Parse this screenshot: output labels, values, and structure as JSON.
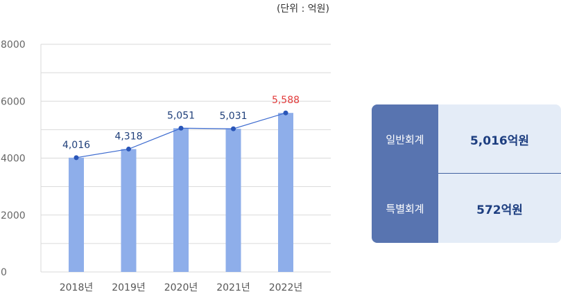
{
  "unit_label": "(단위 : 억원)",
  "colors": {
    "bar": "#8eaeea",
    "line": "#3d6bcf",
    "point": "#2a56b8",
    "label": "#1f3f7a",
    "highlight": "#e23a3a",
    "grid": "#d9d9d9"
  },
  "chart_data": {
    "type": "bar",
    "categories": [
      "2018년",
      "2019년",
      "2020년",
      "2021년",
      "2022년"
    ],
    "values": [
      4016,
      4318,
      5051,
      5031,
      5588
    ],
    "data_labels": [
      "4,016",
      "4,318",
      "5,051",
      "5,031",
      "5,588"
    ],
    "highlight_index": 4,
    "ylim": [
      0,
      8000
    ],
    "yticks": [
      0,
      2000,
      4000,
      6000,
      8000
    ],
    "ytick_labels": [
      "0",
      "2000",
      "4000",
      "6000",
      "8000"
    ],
    "overlay_line": true,
    "grid": true
  },
  "summary": {
    "rows": [
      {
        "label": "일반회계",
        "value": "5,016억원"
      },
      {
        "label": "특별회계",
        "value": "572억원"
      }
    ]
  }
}
